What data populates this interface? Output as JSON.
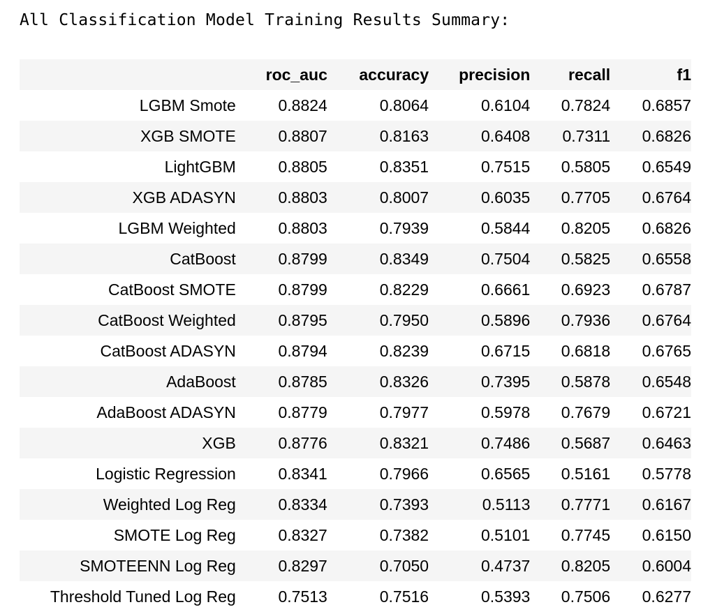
{
  "heading": "All Classification Model Training Results Summary:",
  "table": {
    "index_header": "",
    "columns": [
      "roc_auc",
      "accuracy",
      "precision",
      "recall",
      "f1"
    ],
    "rows": [
      {
        "model": "LGBM Smote",
        "values": [
          "0.8824",
          "0.8064",
          "0.6104",
          "0.7824",
          "0.6857"
        ]
      },
      {
        "model": "XGB SMOTE",
        "values": [
          "0.8807",
          "0.8163",
          "0.6408",
          "0.7311",
          "0.6826"
        ]
      },
      {
        "model": "LightGBM",
        "values": [
          "0.8805",
          "0.8351",
          "0.7515",
          "0.5805",
          "0.6549"
        ]
      },
      {
        "model": "XGB ADASYN",
        "values": [
          "0.8803",
          "0.8007",
          "0.6035",
          "0.7705",
          "0.6764"
        ]
      },
      {
        "model": "LGBM Weighted",
        "values": [
          "0.8803",
          "0.7939",
          "0.5844",
          "0.8205",
          "0.6826"
        ]
      },
      {
        "model": "CatBoost",
        "values": [
          "0.8799",
          "0.8349",
          "0.7504",
          "0.5825",
          "0.6558"
        ]
      },
      {
        "model": "CatBoost SMOTE",
        "values": [
          "0.8799",
          "0.8229",
          "0.6661",
          "0.6923",
          "0.6787"
        ]
      },
      {
        "model": "CatBoost Weighted",
        "values": [
          "0.8795",
          "0.7950",
          "0.5896",
          "0.7936",
          "0.6764"
        ]
      },
      {
        "model": "CatBoost ADASYN",
        "values": [
          "0.8794",
          "0.8239",
          "0.6715",
          "0.6818",
          "0.6765"
        ]
      },
      {
        "model": "AdaBoost",
        "values": [
          "0.8785",
          "0.8326",
          "0.7395",
          "0.5878",
          "0.6548"
        ]
      },
      {
        "model": "AdaBoost ADASYN",
        "values": [
          "0.8779",
          "0.7977",
          "0.5978",
          "0.7679",
          "0.6721"
        ]
      },
      {
        "model": "XGB",
        "values": [
          "0.8776",
          "0.8321",
          "0.7486",
          "0.5687",
          "0.6463"
        ]
      },
      {
        "model": "Logistic Regression",
        "values": [
          "0.8341",
          "0.7966",
          "0.6565",
          "0.5161",
          "0.5778"
        ]
      },
      {
        "model": "Weighted Log Reg",
        "values": [
          "0.8334",
          "0.7393",
          "0.5113",
          "0.7771",
          "0.6167"
        ]
      },
      {
        "model": "SMOTE Log Reg",
        "values": [
          "0.8327",
          "0.7382",
          "0.5101",
          "0.7745",
          "0.6150"
        ]
      },
      {
        "model": "SMOTEENN Log Reg",
        "values": [
          "0.8297",
          "0.7050",
          "0.4737",
          "0.8205",
          "0.6004"
        ]
      },
      {
        "model": "Threshold Tuned Log Reg",
        "values": [
          "0.7513",
          "0.7516",
          "0.5393",
          "0.7506",
          "0.6277"
        ]
      }
    ]
  }
}
